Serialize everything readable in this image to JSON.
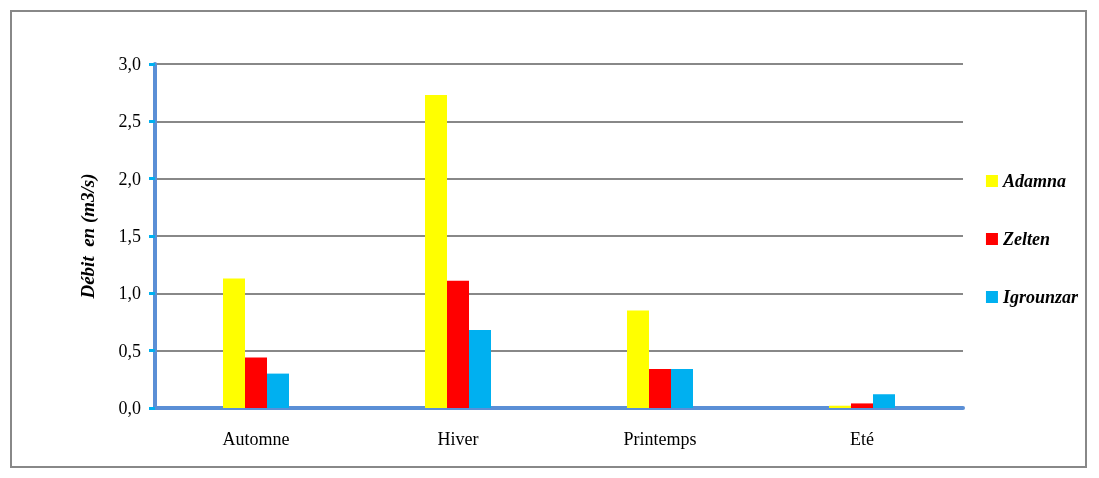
{
  "chart_data": {
    "type": "bar",
    "ylabel": "Débit  en (m3/s)",
    "categories": [
      "Automne",
      "Hiver",
      "Printemps",
      "Eté"
    ],
    "series": [
      {
        "name": "Adamna",
        "color": "#ffff00",
        "values": [
          1.13,
          2.73,
          0.85,
          0.02
        ]
      },
      {
        "name": "Zelten",
        "color": "#ff0000",
        "values": [
          0.44,
          1.11,
          0.34,
          0.04
        ]
      },
      {
        "name": "Igrounzar",
        "color": "#00b0f0",
        "values": [
          0.3,
          0.68,
          0.34,
          0.12
        ]
      }
    ],
    "ylim": [
      0,
      3
    ],
    "yticks": [
      {
        "value": 0,
        "label": "0,0"
      },
      {
        "value": 0.5,
        "label": "0,5"
      },
      {
        "value": 1,
        "label": "1,0"
      },
      {
        "value": 1.5,
        "label": "1,5"
      },
      {
        "value": 2,
        "label": "2,0"
      },
      {
        "value": 2.5,
        "label": "2,5"
      },
      {
        "value": 3,
        "label": "3,0"
      }
    ],
    "grid": "y",
    "legend": "right"
  }
}
